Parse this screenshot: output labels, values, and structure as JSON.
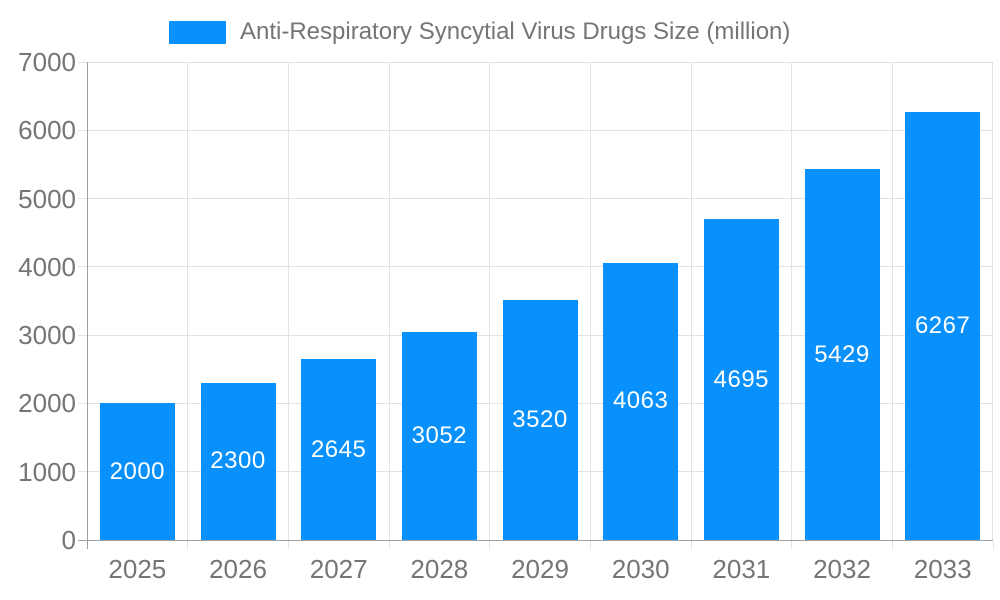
{
  "legend": {
    "label": "Anti-Respiratory Syncytial Virus Drugs Size (million)"
  },
  "chart_data": {
    "type": "bar",
    "title": "Anti-Respiratory Syncytial Virus Drugs Size (million)",
    "categories": [
      "2025",
      "2026",
      "2027",
      "2028",
      "2029",
      "2030",
      "2031",
      "2032",
      "2033"
    ],
    "series": [
      {
        "name": "Anti-Respiratory Syncytial Virus Drugs Size (million)",
        "values": [
          2000,
          2300,
          2645,
          3052,
          3520,
          4063,
          4695,
          5429,
          6267
        ]
      }
    ],
    "value_labels_position": "inside-center",
    "xlabel": "",
    "ylabel": "",
    "ylim": [
      0,
      7000
    ],
    "y_ticks": [
      0,
      1000,
      2000,
      3000,
      4000,
      5000,
      6000,
      7000
    ],
    "grid": true,
    "legend_position": "top-center",
    "colors": {
      "bar": "#0890fc",
      "grid": "#e2e2e2",
      "axis": "#9e9e9e",
      "text": "#757575",
      "value_label": "#ffffff",
      "background": "#ffffff"
    }
  }
}
